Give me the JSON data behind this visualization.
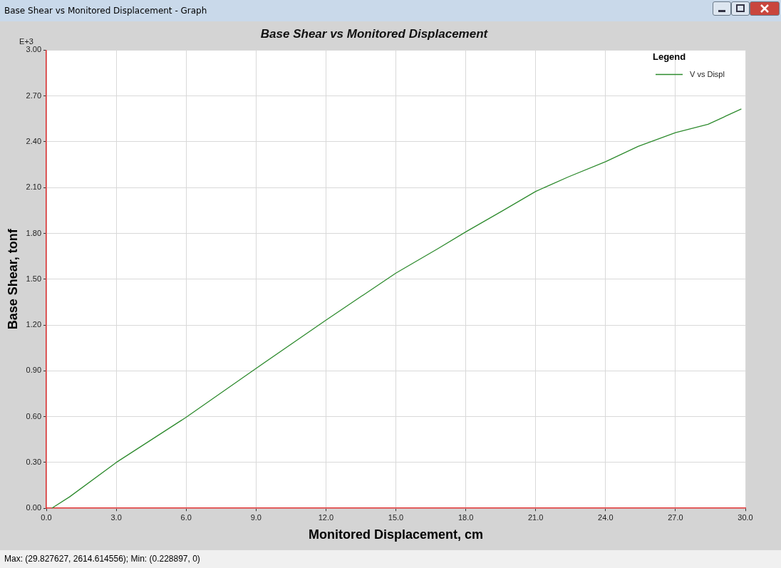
{
  "chart_data": {
    "type": "line",
    "title": "Base Shear vs Monitored Displacement",
    "xlabel": "Monitored Displacement, cm",
    "ylabel": "Base Shear, tonf",
    "legend_title": "Legend",
    "annotations": [
      "Base Shear vs Monitored Displacement - Graph",
      "E+3",
      "Max: (29.827627, 2614.614556);  Min: (0.228897, 0)"
    ],
    "series": [
      {
        "name": "V vs Displ",
        "color": "#2e8b2e",
        "x": [
          0.229,
          1,
          3,
          6,
          9,
          12,
          15,
          16.8,
          18,
          19.6,
          21,
          22.4,
          24,
          25.4,
          27,
          28.4,
          29.828
        ],
        "values": [
          0,
          0.075,
          0.3,
          0.596,
          0.916,
          1.232,
          1.54,
          1.7,
          1.81,
          1.95,
          2.075,
          2.17,
          2.27,
          2.37,
          2.46,
          2.515,
          2.615
        ]
      }
    ],
    "xlim": [
      0,
      30
    ],
    "xticks": [
      {
        "value": 0,
        "label": "0.0"
      },
      {
        "value": 3,
        "label": "3.0"
      },
      {
        "value": 6,
        "label": "6.0"
      },
      {
        "value": 9,
        "label": "9.0"
      },
      {
        "value": 12,
        "label": "12.0"
      },
      {
        "value": 15,
        "label": "15.0"
      },
      {
        "value": 18,
        "label": "18.0"
      },
      {
        "value": 21,
        "label": "21.0"
      },
      {
        "value": 24,
        "label": "24.0"
      },
      {
        "value": 27,
        "label": "27.0"
      },
      {
        "value": 30,
        "label": "30.0"
      }
    ],
    "ylim": [
      0,
      3
    ],
    "yticks": [
      {
        "value": 0,
        "label": "0.00"
      },
      {
        "value": 0.3,
        "label": "0.30"
      },
      {
        "value": 0.6,
        "label": "0.60"
      },
      {
        "value": 0.9,
        "label": "0.90"
      },
      {
        "value": 1.2,
        "label": "1.20"
      },
      {
        "value": 1.5,
        "label": "1.50"
      },
      {
        "value": 1.8,
        "label": "1.80"
      },
      {
        "value": 2.1,
        "label": "2.10"
      },
      {
        "value": 2.4,
        "label": "2.40"
      },
      {
        "value": 2.7,
        "label": "2.70"
      },
      {
        "value": 3,
        "label": "3.00"
      }
    ],
    "grid": true,
    "legend": "top right",
    "marker": "none",
    "line_style": "solid"
  }
}
